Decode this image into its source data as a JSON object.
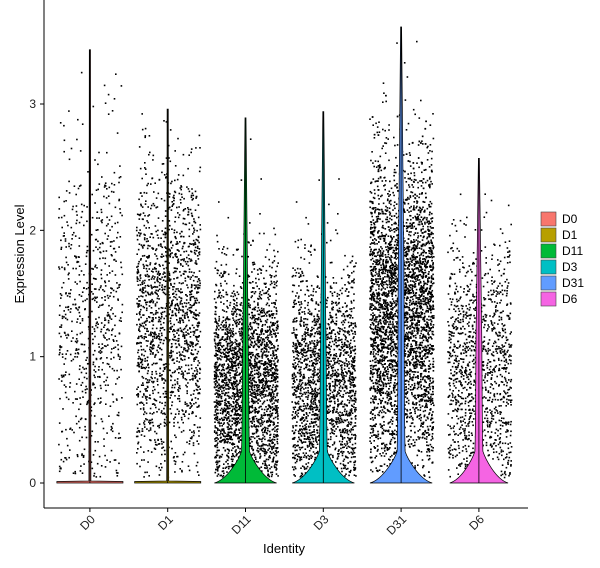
{
  "chart_data": {
    "type": "violin",
    "title": "",
    "xlabel": "Identity",
    "ylabel": "Expression Level",
    "ylim": [
      -0.2,
      3.75
    ],
    "yticks": [
      0,
      1,
      2,
      3
    ],
    "categories": [
      "D0",
      "D1",
      "D11",
      "D3",
      "D31",
      "D6"
    ],
    "legend": {
      "position": "right",
      "entries": [
        "D0",
        "D1",
        "D11",
        "D3",
        "D31",
        "D6"
      ]
    },
    "colors": {
      "D0": "#F8766D",
      "D1": "#B79F00",
      "D11": "#00BA38",
      "D3": "#00BFC4",
      "D31": "#619CFF",
      "D6": "#F564E3"
    },
    "series": [
      {
        "name": "D0",
        "max": 3.43,
        "zero_fraction": 0.8,
        "point_count": 700,
        "base_halfwidth_fraction": 0.85,
        "nonzero_mean": 1.3,
        "nonzero_sd": 0.7
      },
      {
        "name": "D1",
        "max": 2.96,
        "zero_fraction": 0.75,
        "point_count": 1600,
        "base_halfwidth_fraction": 0.85,
        "nonzero_mean": 1.3,
        "nonzero_sd": 0.6
      },
      {
        "name": "D11",
        "max": 2.89,
        "zero_fraction": 0.35,
        "point_count": 2600,
        "base_halfwidth_fraction": 0.8,
        "nonzero_mean": 0.8,
        "nonzero_sd": 0.45
      },
      {
        "name": "D3",
        "max": 2.94,
        "zero_fraction": 0.35,
        "point_count": 2000,
        "base_halfwidth_fraction": 0.8,
        "nonzero_mean": 0.8,
        "nonzero_sd": 0.45
      },
      {
        "name": "D31",
        "max": 3.61,
        "zero_fraction": 0.25,
        "point_count": 4200,
        "base_halfwidth_fraction": 0.8,
        "nonzero_mean": 1.35,
        "nonzero_sd": 0.6
      },
      {
        "name": "D6",
        "max": 2.57,
        "zero_fraction": 0.35,
        "point_count": 1200,
        "base_halfwidth_fraction": 0.75,
        "nonzero_mean": 0.9,
        "nonzero_sd": 0.5
      }
    ]
  }
}
